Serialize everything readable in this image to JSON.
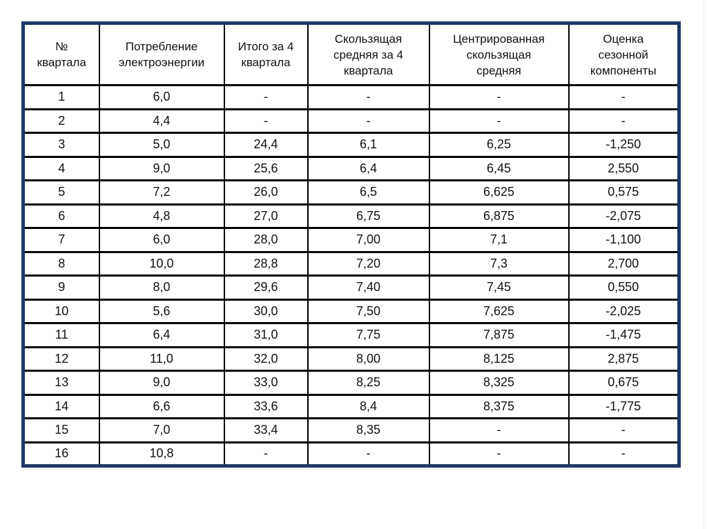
{
  "page": {
    "background": "#ffffff",
    "edge_line_color": "#ececec"
  },
  "table": {
    "colors": {
      "outer_border": "#1f3864",
      "grid": "#000000",
      "text": "#111111",
      "cell_background": "#ffffff"
    },
    "columns": [
      {
        "id": "quarter-number",
        "label": "№\nквартала"
      },
      {
        "id": "electricity-consumption",
        "label": "Потребление\nэлектроэнергии"
      },
      {
        "id": "total-4-quarters",
        "label": "Итого за 4\nквартала"
      },
      {
        "id": "moving-average-4-quarters",
        "label": "Скользящая\nсредняя за 4\nквартала"
      },
      {
        "id": "centered-moving-average",
        "label": "Центрированная\nскользящая\nсредняя"
      },
      {
        "id": "seasonal-component-estimate",
        "label": "Оценка\nсезонной\nкомпоненты"
      }
    ],
    "rows": [
      [
        "1",
        "6,0",
        "-",
        "-",
        "-",
        "-"
      ],
      [
        "2",
        "4,4",
        "-",
        "-",
        "-",
        "-"
      ],
      [
        "3",
        "5,0",
        "24,4",
        "6,1",
        "6,25",
        "-1,250"
      ],
      [
        "4",
        "9,0",
        "25,6",
        "6,4",
        "6,45",
        "2,550"
      ],
      [
        "5",
        "7,2",
        "26,0",
        "6,5",
        "6,625",
        "0,575"
      ],
      [
        "6",
        "4,8",
        "27,0",
        "6,75",
        "6,875",
        "-2,075"
      ],
      [
        "7",
        "6,0",
        "28,0",
        "7,00",
        "7,1",
        "-1,100"
      ],
      [
        "8",
        "10,0",
        "28,8",
        "7,20",
        "7,3",
        "2,700"
      ],
      [
        "9",
        "8,0",
        "29,6",
        "7,40",
        "7,45",
        "0,550"
      ],
      [
        "10",
        "5,6",
        "30,0",
        "7,50",
        "7,625",
        "-2,025"
      ],
      [
        "11",
        "6,4",
        "31,0",
        "7,75",
        "7,875",
        "-1,475"
      ],
      [
        "12",
        "11,0",
        "32,0",
        "8,00",
        "8,125",
        "2,875"
      ],
      [
        "13",
        "9,0",
        "33,0",
        "8,25",
        "8,325",
        "0,675"
      ],
      [
        "14",
        "6,6",
        "33,6",
        "8,4",
        "8,375",
        "-1,775"
      ],
      [
        "15",
        "7,0",
        "33,4",
        "8,35",
        "-",
        "-"
      ],
      [
        "16",
        "10,8",
        "-",
        "-",
        "-",
        "-"
      ]
    ]
  }
}
